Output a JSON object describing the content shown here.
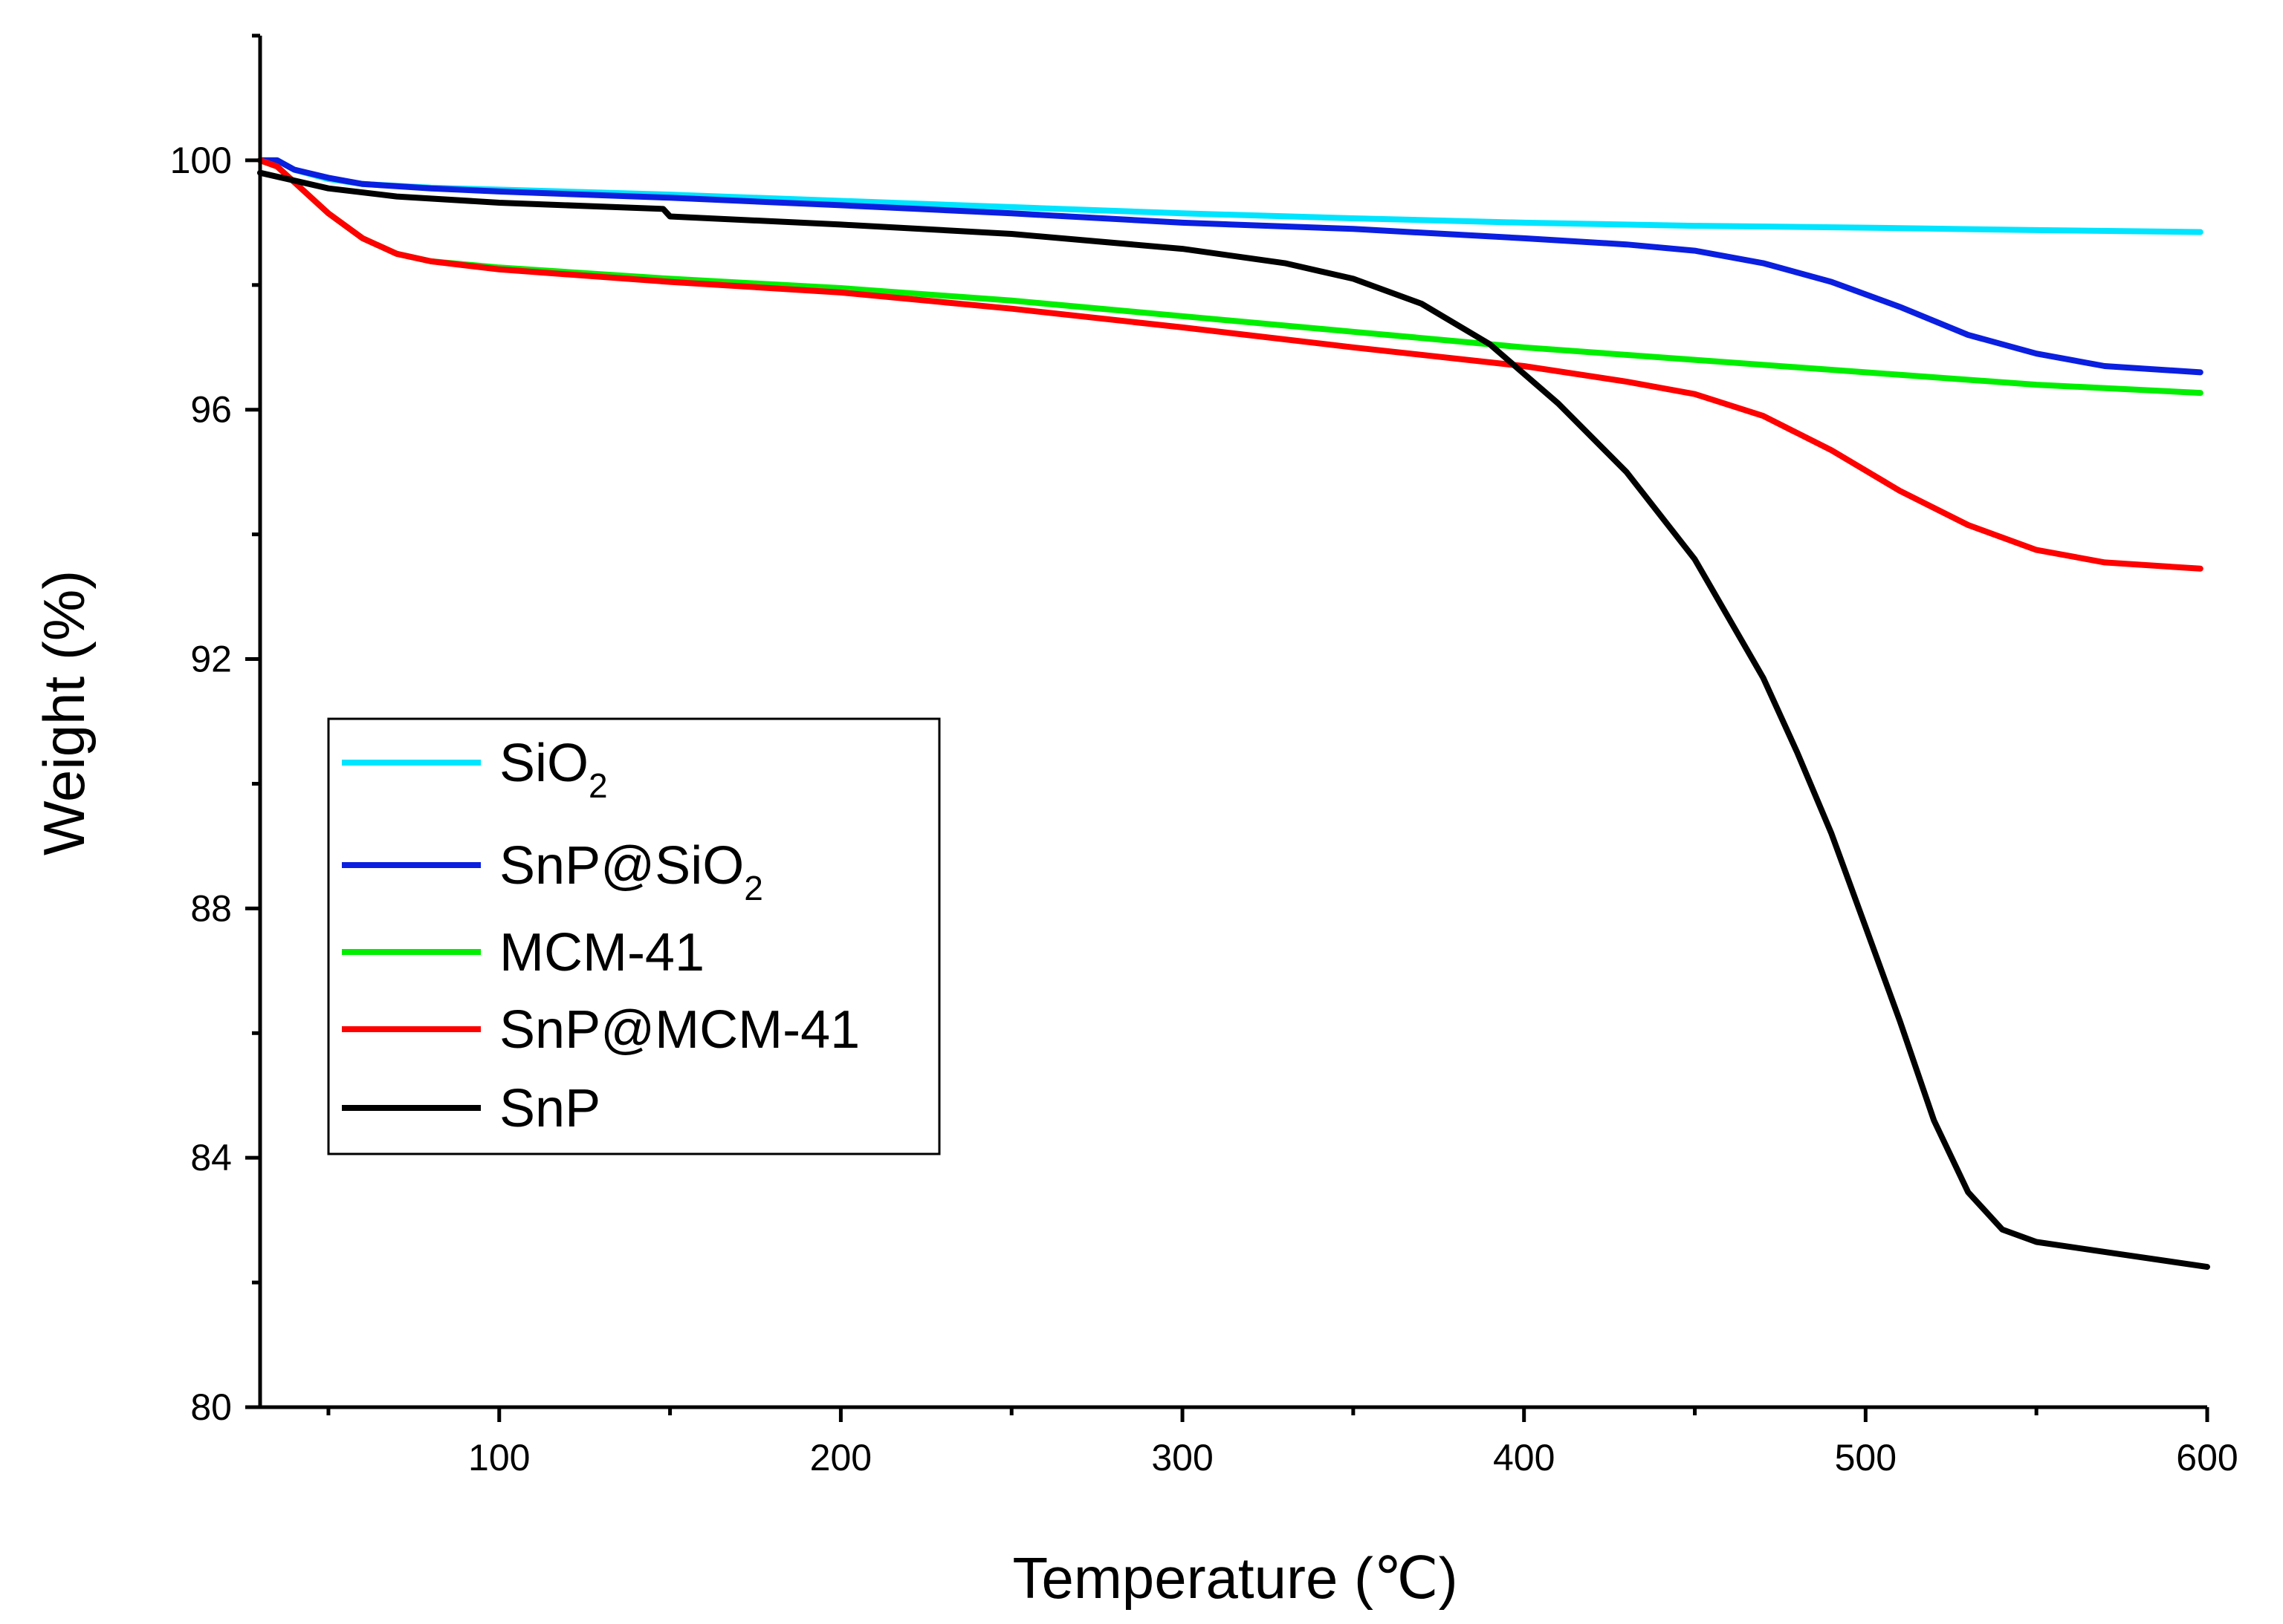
{
  "chart_data": {
    "type": "line",
    "title": "",
    "xlabel": "Temperature (℃)",
    "ylabel": "Weight (%)",
    "xlim": [
      30,
      600
    ],
    "ylim": [
      80,
      102
    ],
    "xticks": [
      100,
      200,
      300,
      400,
      500,
      600
    ],
    "yticks": [
      80,
      84,
      88,
      92,
      96,
      100
    ],
    "legend_position": "center-left",
    "series": [
      {
        "name": "SiO2",
        "legend_label": {
          "main": "SiO",
          "sub": "2",
          "rest": ""
        },
        "color": "#00e5ff",
        "points": [
          [
            30,
            100.0
          ],
          [
            35,
            100.0
          ],
          [
            40,
            99.85
          ],
          [
            50,
            99.7
          ],
          [
            60,
            99.62
          ],
          [
            80,
            99.56
          ],
          [
            100,
            99.53
          ],
          [
            150,
            99.45
          ],
          [
            200,
            99.35
          ],
          [
            250,
            99.25
          ],
          [
            300,
            99.15
          ],
          [
            350,
            99.07
          ],
          [
            400,
            99.0
          ],
          [
            450,
            98.95
          ],
          [
            500,
            98.92
          ],
          [
            550,
            98.88
          ],
          [
            598,
            98.85
          ]
        ]
      },
      {
        "name": "SnP@SiO2",
        "legend_label": {
          "main": "SnP@SiO",
          "sub": "2",
          "rest": ""
        },
        "color": "#0a1fe0",
        "points": [
          [
            30,
            100.0
          ],
          [
            35,
            100.0
          ],
          [
            40,
            99.85
          ],
          [
            50,
            99.72
          ],
          [
            60,
            99.62
          ],
          [
            80,
            99.55
          ],
          [
            100,
            99.5
          ],
          [
            150,
            99.4
          ],
          [
            200,
            99.28
          ],
          [
            250,
            99.15
          ],
          [
            300,
            99.0
          ],
          [
            350,
            98.9
          ],
          [
            400,
            98.75
          ],
          [
            430,
            98.65
          ],
          [
            450,
            98.55
          ],
          [
            470,
            98.35
          ],
          [
            490,
            98.05
          ],
          [
            510,
            97.65
          ],
          [
            530,
            97.2
          ],
          [
            550,
            96.9
          ],
          [
            570,
            96.7
          ],
          [
            598,
            96.6
          ]
        ]
      },
      {
        "name": "MCM-41",
        "legend_label": {
          "main": "MCM-41",
          "sub": "",
          "rest": ""
        },
        "color": "#00ee00",
        "points": [
          [
            30,
            100.0
          ],
          [
            35,
            99.9
          ],
          [
            40,
            99.65
          ],
          [
            50,
            99.15
          ],
          [
            60,
            98.75
          ],
          [
            70,
            98.5
          ],
          [
            80,
            98.38
          ],
          [
            100,
            98.28
          ],
          [
            150,
            98.1
          ],
          [
            200,
            97.95
          ],
          [
            250,
            97.75
          ],
          [
            300,
            97.5
          ],
          [
            350,
            97.25
          ],
          [
            400,
            97.0
          ],
          [
            450,
            96.8
          ],
          [
            500,
            96.6
          ],
          [
            550,
            96.4
          ],
          [
            598,
            96.27
          ]
        ]
      },
      {
        "name": "SnP@MCM-41",
        "legend_label": {
          "main": "SnP@MCM-41",
          "sub": "",
          "rest": ""
        },
        "color": "#ff0000",
        "points": [
          [
            30,
            100.0
          ],
          [
            35,
            99.9
          ],
          [
            40,
            99.65
          ],
          [
            50,
            99.15
          ],
          [
            60,
            98.75
          ],
          [
            70,
            98.5
          ],
          [
            80,
            98.38
          ],
          [
            100,
            98.25
          ],
          [
            150,
            98.05
          ],
          [
            200,
            97.88
          ],
          [
            250,
            97.62
          ],
          [
            300,
            97.32
          ],
          [
            350,
            97.0
          ],
          [
            400,
            96.7
          ],
          [
            430,
            96.45
          ],
          [
            450,
            96.25
          ],
          [
            470,
            95.9
          ],
          [
            490,
            95.35
          ],
          [
            510,
            94.7
          ],
          [
            530,
            94.15
          ],
          [
            550,
            93.75
          ],
          [
            570,
            93.55
          ],
          [
            598,
            93.45
          ]
        ]
      },
      {
        "name": "SnP",
        "legend_label": {
          "main": "SnP",
          "sub": "",
          "rest": ""
        },
        "color": "#000000",
        "points": [
          [
            30,
            99.8
          ],
          [
            50,
            99.55
          ],
          [
            70,
            99.42
          ],
          [
            100,
            99.32
          ],
          [
            148,
            99.22
          ],
          [
            150,
            99.1
          ],
          [
            200,
            98.97
          ],
          [
            250,
            98.82
          ],
          [
            300,
            98.58
          ],
          [
            330,
            98.35
          ],
          [
            350,
            98.1
          ],
          [
            370,
            97.7
          ],
          [
            390,
            97.05
          ],
          [
            410,
            96.1
          ],
          [
            430,
            95.0
          ],
          [
            450,
            93.6
          ],
          [
            470,
            91.7
          ],
          [
            480,
            90.5
          ],
          [
            490,
            89.2
          ],
          [
            500,
            87.7
          ],
          [
            510,
            86.2
          ],
          [
            520,
            84.6
          ],
          [
            530,
            83.45
          ],
          [
            540,
            82.85
          ],
          [
            550,
            82.65
          ],
          [
            575,
            82.45
          ],
          [
            600,
            82.25
          ]
        ]
      }
    ]
  }
}
